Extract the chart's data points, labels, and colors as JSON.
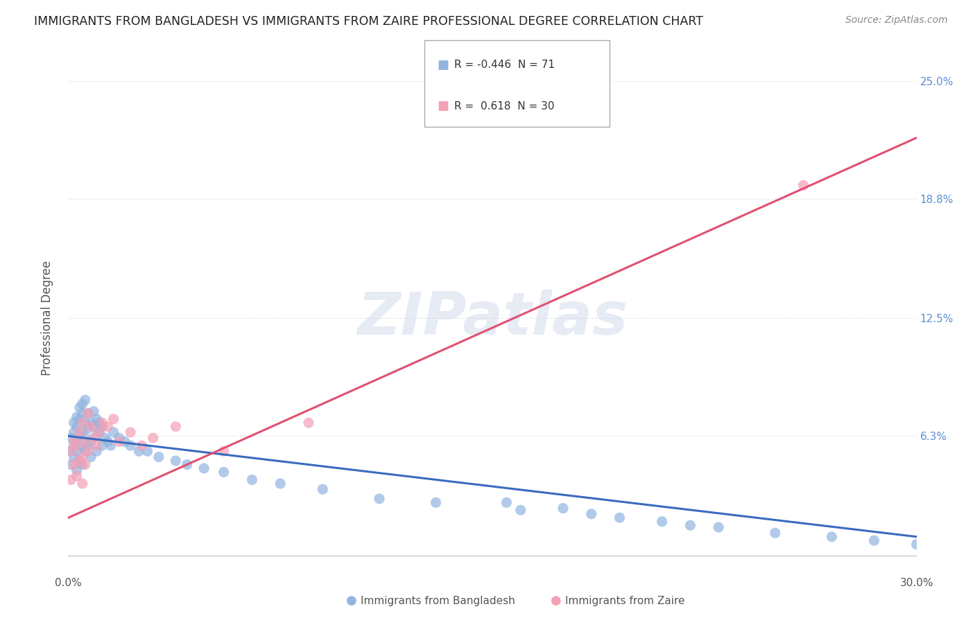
{
  "title": "IMMIGRANTS FROM BANGLADESH VS IMMIGRANTS FROM ZAIRE PROFESSIONAL DEGREE CORRELATION CHART",
  "source": "Source: ZipAtlas.com",
  "xlabel_bottom": "Immigrants from Bangladesh",
  "xlabel_right_label": "Immigrants from Zaire",
  "ylabel": "Professional Degree",
  "watermark": "ZIPatlas",
  "xlim": [
    0.0,
    0.3
  ],
  "ylim": [
    -0.01,
    0.26
  ],
  "ytick_vals": [
    0.0,
    0.063,
    0.125,
    0.188,
    0.25
  ],
  "yticklabels_right": [
    "",
    "6.3%",
    "12.5%",
    "18.8%",
    "25.0%"
  ],
  "legend_blue_r": "-0.446",
  "legend_blue_n": "71",
  "legend_pink_r": "0.618",
  "legend_pink_n": "30",
  "blue_color": "#92b4e0",
  "pink_color": "#f4a0b5",
  "blue_line_color": "#3a6bbf",
  "pink_line_color": "#e05070",
  "background_color": "#ffffff",
  "grid_color": "#e8e8e8",
  "title_color": "#222222",
  "source_color": "#888888",
  "blue_scatter_x": [
    0.001,
    0.001,
    0.001,
    0.002,
    0.002,
    0.002,
    0.002,
    0.003,
    0.003,
    0.003,
    0.003,
    0.003,
    0.004,
    0.004,
    0.004,
    0.004,
    0.005,
    0.005,
    0.005,
    0.005,
    0.005,
    0.006,
    0.006,
    0.006,
    0.006,
    0.007,
    0.007,
    0.007,
    0.008,
    0.008,
    0.008,
    0.009,
    0.009,
    0.01,
    0.01,
    0.01,
    0.011,
    0.011,
    0.012,
    0.012,
    0.013,
    0.014,
    0.015,
    0.016,
    0.018,
    0.02,
    0.022,
    0.025,
    0.028,
    0.032,
    0.038,
    0.042,
    0.048,
    0.055,
    0.065,
    0.075,
    0.09,
    0.11,
    0.13,
    0.16,
    0.185,
    0.21,
    0.23,
    0.25,
    0.27,
    0.285,
    0.3,
    0.195,
    0.22,
    0.175,
    0.155
  ],
  "blue_scatter_y": [
    0.055,
    0.062,
    0.048,
    0.058,
    0.065,
    0.052,
    0.07,
    0.06,
    0.068,
    0.045,
    0.073,
    0.055,
    0.063,
    0.072,
    0.05,
    0.078,
    0.057,
    0.066,
    0.075,
    0.048,
    0.08,
    0.062,
    0.07,
    0.055,
    0.082,
    0.058,
    0.067,
    0.075,
    0.06,
    0.07,
    0.052,
    0.068,
    0.076,
    0.063,
    0.072,
    0.055,
    0.065,
    0.07,
    0.058,
    0.068,
    0.062,
    0.06,
    0.058,
    0.065,
    0.062,
    0.06,
    0.058,
    0.055,
    0.055,
    0.052,
    0.05,
    0.048,
    0.046,
    0.044,
    0.04,
    0.038,
    0.035,
    0.03,
    0.028,
    0.024,
    0.022,
    0.018,
    0.015,
    0.012,
    0.01,
    0.008,
    0.006,
    0.02,
    0.016,
    0.025,
    0.028
  ],
  "pink_scatter_x": [
    0.001,
    0.001,
    0.002,
    0.002,
    0.003,
    0.003,
    0.004,
    0.004,
    0.005,
    0.005,
    0.005,
    0.006,
    0.006,
    0.007,
    0.007,
    0.008,
    0.009,
    0.01,
    0.011,
    0.012,
    0.014,
    0.016,
    0.018,
    0.022,
    0.026,
    0.03,
    0.038,
    0.055,
    0.085,
    0.26
  ],
  "pink_scatter_y": [
    0.055,
    0.04,
    0.06,
    0.048,
    0.058,
    0.042,
    0.065,
    0.05,
    0.052,
    0.07,
    0.038,
    0.06,
    0.048,
    0.075,
    0.055,
    0.068,
    0.062,
    0.058,
    0.065,
    0.07,
    0.068,
    0.072,
    0.06,
    0.065,
    0.058,
    0.062,
    0.068,
    0.055,
    0.07,
    0.195
  ],
  "blue_line_x": [
    0.0,
    0.3
  ],
  "blue_line_y": [
    0.063,
    0.01
  ],
  "pink_line_x": [
    0.0,
    0.3
  ],
  "pink_line_y": [
    0.02,
    0.22
  ]
}
